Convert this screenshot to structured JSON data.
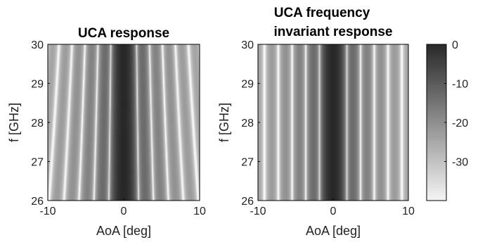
{
  "chart_data": [
    {
      "type": "heatmap",
      "title": "UCA response",
      "xlabel": "AoA [deg]",
      "ylabel": "f [GHz]",
      "xlim": [
        -10,
        10
      ],
      "ylim": [
        26,
        30
      ],
      "xticks": [
        "-10",
        "0",
        "10"
      ],
      "yticks": [
        "26",
        "27",
        "28",
        "29",
        "30"
      ],
      "colormap": "gray",
      "clim": [
        -40,
        0
      ],
      "pattern": "frequency-dependent sidelobe stripes; strong dark main lobe at 0 deg"
    },
    {
      "type": "heatmap",
      "title_lines": [
        "UCA frequency",
        "invariant response"
      ],
      "xlabel": "AoA [deg]",
      "ylabel": "f [GHz]",
      "xlim": [
        -10,
        10
      ],
      "ylim": [
        26,
        30
      ],
      "xticks": [
        "-10",
        "0",
        "10"
      ],
      "yticks": [
        "26",
        "27",
        "28",
        "29",
        "30"
      ],
      "colormap": "gray",
      "clim": [
        -40,
        0
      ],
      "pattern": "vertical stripes constant over frequency; main lobe at 0 deg"
    }
  ],
  "colorbar": {
    "ticks": [
      "0",
      "-10",
      "-20",
      "-30"
    ],
    "tick_values": [
      0,
      -10,
      -20,
      -30
    ],
    "range": [
      -40,
      0
    ]
  }
}
